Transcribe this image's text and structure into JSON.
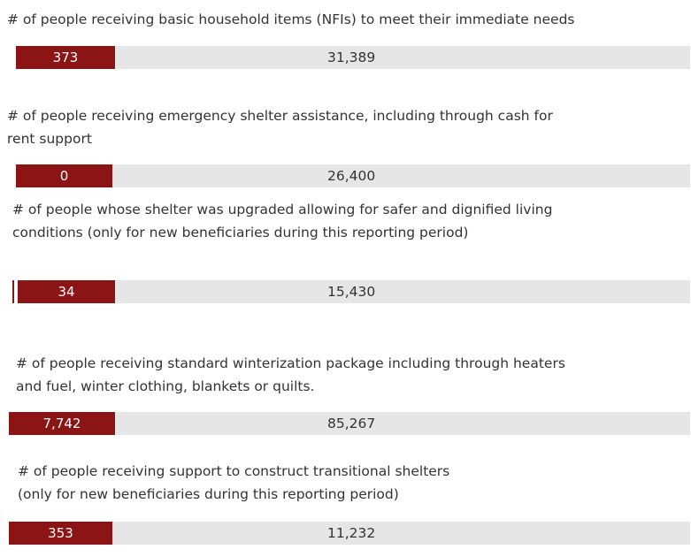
{
  "indicators": [
    {
      "label_lines": [
        "# of people receiving basic household items (NFIs) to meet their immediate needs"
      ],
      "achieved": "373",
      "target": "31,389"
    },
    {
      "label_lines": [
        "# of people receiving emergency shelter assistance, including through cash for",
        "rent support"
      ],
      "achieved": "0",
      "target": "26,400"
    },
    {
      "label_lines": [
        "# of people whose shelter was upgraded allowing for safer and dignified living",
        "conditions (only for new beneficiaries during this reporting period)"
      ],
      "achieved": "34",
      "target": "15,430"
    },
    {
      "label_lines": [
        "# of people receiving standard winterization package including through heaters",
        "and fuel, winter clothing, blankets or quilts."
      ],
      "achieved": "7,742",
      "target": "85,267"
    },
    {
      "label_lines": [
        "# of people receiving support to construct transitional shelters",
        "(only for new beneficiaries during this reporting period)"
      ],
      "achieved": "353",
      "target": "11,232"
    }
  ]
}
